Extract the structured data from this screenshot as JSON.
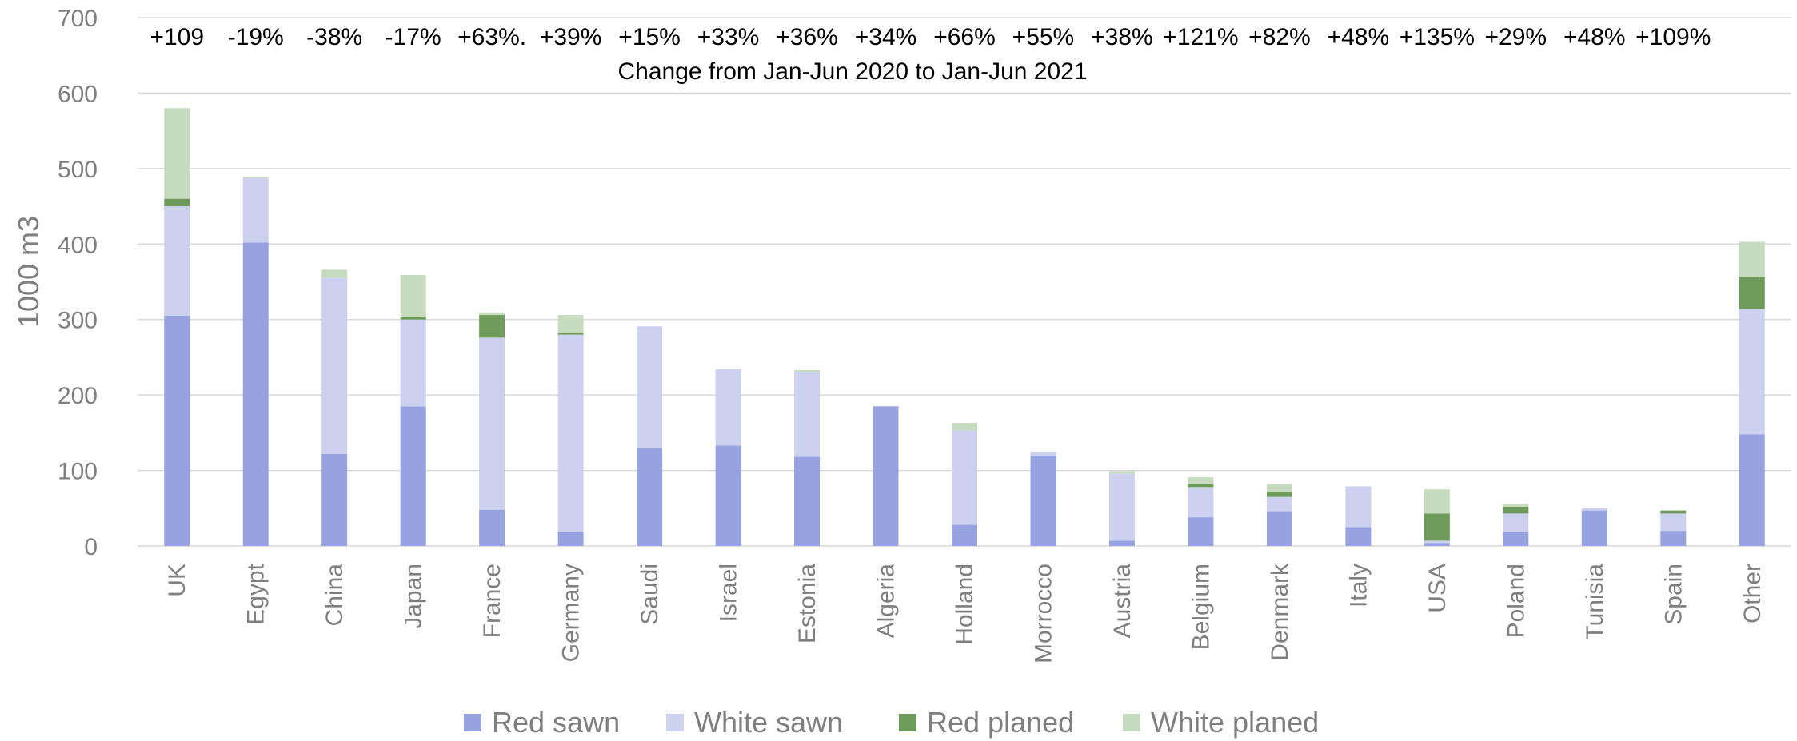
{
  "chart_data": {
    "type": "bar",
    "stacked": true,
    "ylabel": "1000 m3",
    "xlabel": "",
    "ylim": [
      0,
      700
    ],
    "yticks": [
      0,
      100,
      200,
      300,
      400,
      500,
      600,
      700
    ],
    "grid": true,
    "legend": "bottom",
    "categories": [
      "UK",
      "Egypt",
      "China",
      "Japan",
      "France",
      "Germany",
      "Saudi",
      "Israel",
      "Estonia",
      "Algeria",
      "Holland",
      "Morrocco",
      "Austria",
      "Belgium",
      "Denmark",
      "Italy",
      "USA",
      "Poland",
      "Tunisia",
      "Spain",
      "Other"
    ],
    "series": [
      {
        "name": "Red sawn",
        "color": "#97a3e0",
        "values": [
          305,
          402,
          122,
          185,
          48,
          18,
          130,
          133,
          118,
          185,
          28,
          120,
          7,
          38,
          46,
          25,
          4,
          18,
          47,
          20,
          148
        ]
      },
      {
        "name": "White sawn",
        "color": "#ccd1f0",
        "values": [
          145,
          85,
          233,
          115,
          228,
          262,
          161,
          101,
          112,
          0,
          125,
          4,
          89,
          40,
          19,
          54,
          3,
          25,
          3,
          23,
          166
        ]
      },
      {
        "name": "Red planed",
        "color": "#6e9b5a",
        "values": [
          10,
          0,
          0,
          4,
          30,
          3,
          0,
          0,
          0,
          0,
          0,
          0,
          0,
          4,
          7,
          0,
          36,
          9,
          0,
          4,
          43
        ]
      },
      {
        "name": "White planed",
        "color": "#c7dbbf",
        "values": [
          120,
          2,
          11,
          55,
          3,
          23,
          0,
          0,
          3,
          0,
          10,
          0,
          3,
          9,
          10,
          0,
          32,
          4,
          0,
          0,
          46
        ]
      }
    ],
    "changes": [
      "+109",
      "-19%",
      "-38%",
      "-17%",
      "+63%.",
      "+39%",
      "+15%",
      "+33%",
      "+36%",
      "+34%",
      "+66%",
      "+55%",
      "+38%",
      "+121%",
      "+82%",
      "+48%",
      "+135%",
      "+29%",
      "+48%",
      "+109%",
      ""
    ],
    "annotation": "Change from Jan-Jun 2020 to Jan-Jun 2021"
  }
}
